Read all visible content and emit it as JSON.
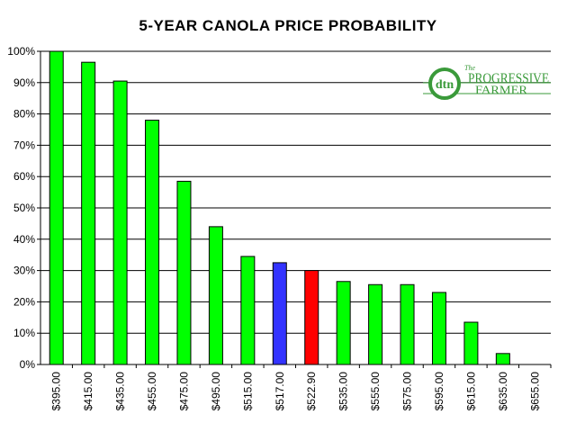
{
  "chart_data": {
    "type": "bar",
    "title": "5-YEAR CANOLA PRICE PROBABILITY",
    "xlabel": "",
    "ylabel": "",
    "ylim": [
      0,
      100
    ],
    "yticks": [
      "0%",
      "10%",
      "20%",
      "30%",
      "40%",
      "50%",
      "60%",
      "70%",
      "80%",
      "90%",
      "100%"
    ],
    "categories": [
      "$395.00",
      "$415.00",
      "$435.00",
      "$455.00",
      "$475.00",
      "$495.00",
      "$515.00",
      "$517.00",
      "$522.90",
      "$535.00",
      "$555.00",
      "$575.00",
      "$595.00",
      "$615.00",
      "$635.00",
      "$655.00"
    ],
    "values": [
      100,
      96.5,
      90.5,
      78,
      58.5,
      44,
      34.5,
      32.5,
      30,
      26.5,
      25.5,
      25.5,
      23,
      13.5,
      3.5,
      0
    ],
    "bar_colors": [
      "#00ff00",
      "#00ff00",
      "#00ff00",
      "#00ff00",
      "#00ff00",
      "#00ff00",
      "#00ff00",
      "#3333ff",
      "#ff0000",
      "#00ff00",
      "#00ff00",
      "#00ff00",
      "#00ff00",
      "#00ff00",
      "#00ff00",
      "#00ff00"
    ],
    "grid": true
  },
  "logo": {
    "mark": "dtn",
    "line1": "PROGRESSIVE",
    "line2": "FARMER",
    "prefix": "The"
  },
  "colors": {
    "gridline": "#000000",
    "bar_outline": "#000000",
    "logo_green": "#3a9a3a"
  }
}
